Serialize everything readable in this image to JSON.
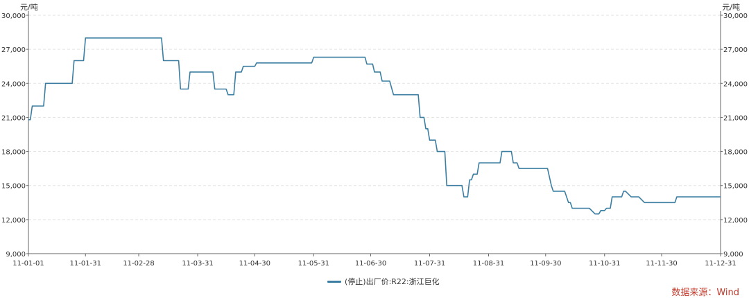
{
  "chart_data": {
    "type": "line",
    "y_unit_left": "元/吨",
    "y_unit_right": "元/吨",
    "ylim": [
      9000,
      30000
    ],
    "yticks": [
      "9,000",
      "12,000",
      "15,000",
      "18,000",
      "21,000",
      "24,000",
      "27,000",
      "30,000"
    ],
    "ytick_values": [
      9000,
      12000,
      15000,
      18000,
      21000,
      24000,
      27000,
      30000
    ],
    "xlim": [
      "2011-01-01",
      "2011-12-31"
    ],
    "xticks": [
      "11-01-01",
      "11-01-31",
      "11-02-28",
      "11-03-31",
      "11-04-30",
      "11-05-31",
      "11-06-30",
      "11-07-31",
      "11-08-31",
      "11-09-30",
      "11-10-31",
      "11-11-30",
      "11-12-31"
    ],
    "xtick_dates": [
      "2011-01-01",
      "2011-01-31",
      "2011-02-28",
      "2011-03-31",
      "2011-04-30",
      "2011-05-31",
      "2011-06-30",
      "2011-07-31",
      "2011-08-31",
      "2011-09-30",
      "2011-10-31",
      "2011-11-30",
      "2011-12-31"
    ],
    "grid": true,
    "legend_position": "bottom-center",
    "series": [
      {
        "name": "(停止)出厂价:R22:浙江巨化",
        "color": "#3b7ea1",
        "points": [
          [
            "2011-01-01",
            20800
          ],
          [
            "2011-01-02",
            20800
          ],
          [
            "2011-01-03",
            22000
          ],
          [
            "2011-01-09",
            22000
          ],
          [
            "2011-01-10",
            24000
          ],
          [
            "2011-01-24",
            24000
          ],
          [
            "2011-01-25",
            26000
          ],
          [
            "2011-01-30",
            26000
          ],
          [
            "2011-01-31",
            28000
          ],
          [
            "2011-03-12",
            28000
          ],
          [
            "2011-03-13",
            26000
          ],
          [
            "2011-03-21",
            26000
          ],
          [
            "2011-03-22",
            23500
          ],
          [
            "2011-03-26",
            23500
          ],
          [
            "2011-03-27",
            25000
          ],
          [
            "2011-04-08",
            25000
          ],
          [
            "2011-04-09",
            23500
          ],
          [
            "2011-04-15",
            23500
          ],
          [
            "2011-04-16",
            23000
          ],
          [
            "2011-04-19",
            23000
          ],
          [
            "2011-04-20",
            25000
          ],
          [
            "2011-04-23",
            25000
          ],
          [
            "2011-04-24",
            25500
          ],
          [
            "2011-04-30",
            25500
          ],
          [
            "2011-05-01",
            25800
          ],
          [
            "2011-05-30",
            25800
          ],
          [
            "2011-05-31",
            26300
          ],
          [
            "2011-06-27",
            26300
          ],
          [
            "2011-06-28",
            25700
          ],
          [
            "2011-07-01",
            25700
          ],
          [
            "2011-07-02",
            25000
          ],
          [
            "2011-07-05",
            25000
          ],
          [
            "2011-07-06",
            24200
          ],
          [
            "2011-07-10",
            24200
          ],
          [
            "2011-07-12",
            23000
          ],
          [
            "2011-07-25",
            23000
          ],
          [
            "2011-07-26",
            21000
          ],
          [
            "2011-07-28",
            21000
          ],
          [
            "2011-07-29",
            20000
          ],
          [
            "2011-07-30",
            20000
          ],
          [
            "2011-07-31",
            19000
          ],
          [
            "2011-08-03",
            19000
          ],
          [
            "2011-08-04",
            18000
          ],
          [
            "2011-08-08",
            18000
          ],
          [
            "2011-08-09",
            15000
          ],
          [
            "2011-08-17",
            15000
          ],
          [
            "2011-08-18",
            14000
          ],
          [
            "2011-08-20",
            14000
          ],
          [
            "2011-08-21",
            15500
          ],
          [
            "2011-08-22",
            15500
          ],
          [
            "2011-08-23",
            16000
          ],
          [
            "2011-08-25",
            16000
          ],
          [
            "2011-08-26",
            17000
          ],
          [
            "2011-09-06",
            17000
          ],
          [
            "2011-09-07",
            18000
          ],
          [
            "2011-09-12",
            18000
          ],
          [
            "2011-09-13",
            17000
          ],
          [
            "2011-09-15",
            17000
          ],
          [
            "2011-09-16",
            16500
          ],
          [
            "2011-10-01",
            16500
          ],
          [
            "2011-10-03",
            15000
          ],
          [
            "2011-10-04",
            14500
          ],
          [
            "2011-10-10",
            14500
          ],
          [
            "2011-10-12",
            13500
          ],
          [
            "2011-10-13",
            13500
          ],
          [
            "2011-10-14",
            13000
          ],
          [
            "2011-10-23",
            13000
          ],
          [
            "2011-10-26",
            12500
          ],
          [
            "2011-10-28",
            12500
          ],
          [
            "2011-10-29",
            12800
          ],
          [
            "2011-10-31",
            12800
          ],
          [
            "2011-11-01",
            13000
          ],
          [
            "2011-11-03",
            13000
          ],
          [
            "2011-11-04",
            14000
          ],
          [
            "2011-11-09",
            14000
          ],
          [
            "2011-11-10",
            14500
          ],
          [
            "2011-11-11",
            14500
          ],
          [
            "2011-11-14",
            14000
          ],
          [
            "2011-11-18",
            14000
          ],
          [
            "2011-11-21",
            13500
          ],
          [
            "2011-12-07",
            13500
          ],
          [
            "2011-12-08",
            14000
          ],
          [
            "2011-12-31",
            14000
          ]
        ]
      }
    ]
  },
  "legend": {
    "label": "(停止)出厂价:R22:浙江巨化"
  },
  "source": "数据来源：Wind"
}
